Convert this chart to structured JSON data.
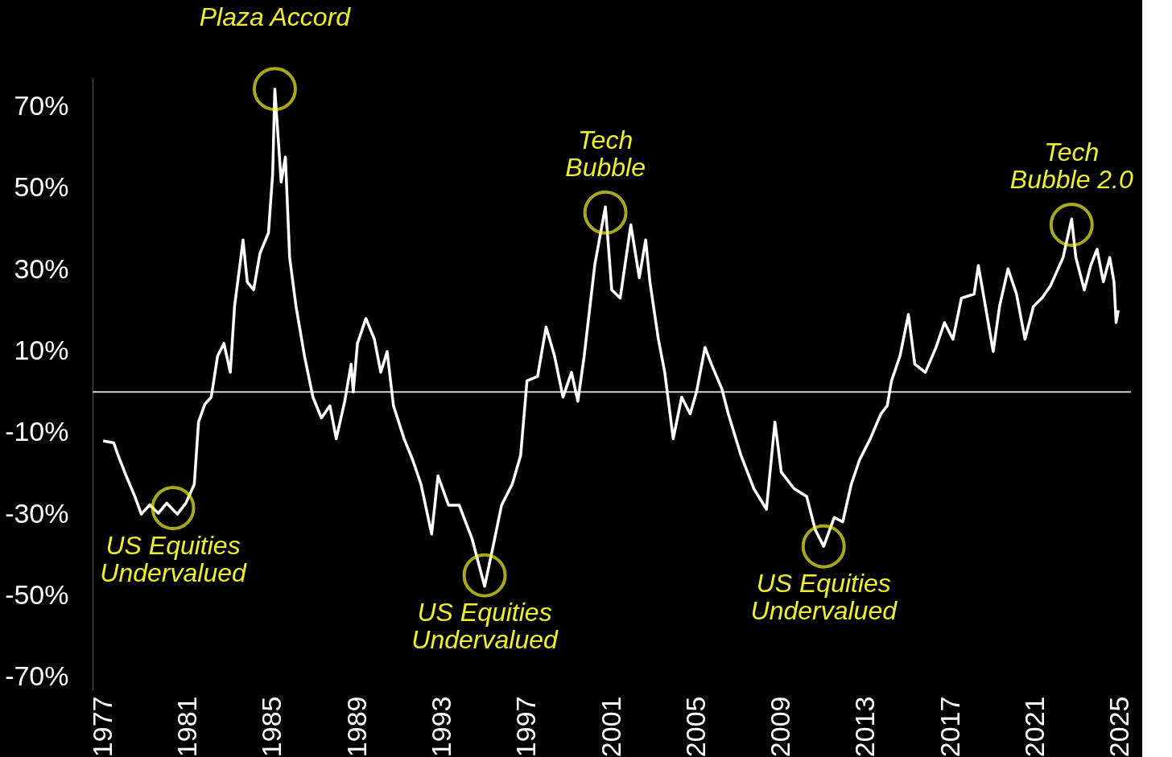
{
  "chart_data": {
    "type": "line",
    "x": [
      1977.0,
      1977.5,
      1977.7,
      1978.1,
      1978.5,
      1978.8,
      1979.2,
      1979.6,
      1980.0,
      1980.5,
      1980.9,
      1981.3,
      1981.5,
      1981.8,
      1982.1,
      1982.4,
      1982.7,
      1983.0,
      1983.2,
      1983.5,
      1983.6,
      1983.8,
      1984.1,
      1984.4,
      1984.8,
      1985.0,
      1985.1,
      1985.4,
      1985.6,
      1985.8,
      1986.1,
      1986.5,
      1986.9,
      1987.3,
      1987.7,
      1988.0,
      1988.4,
      1988.7,
      1988.8,
      1989.0,
      1989.4,
      1989.8,
      1990.1,
      1990.4,
      1990.7,
      1991.2,
      1991.6,
      1992.0,
      1992.5,
      1992.8,
      1993.3,
      1993.8,
      1994.4,
      1995.0,
      1995.4,
      1995.8,
      1996.3,
      1996.7,
      1997.0,
      1997.5,
      1997.9,
      1998.3,
      1998.7,
      1999.1,
      1999.4,
      1999.7,
      2000.2,
      2000.7,
      2001.0,
      2001.4,
      2001.9,
      2002.3,
      2002.6,
      2002.8,
      2003.2,
      2003.5,
      2003.9,
      2004.3,
      2004.7,
      2005.0,
      2005.4,
      2005.7,
      2006.2,
      2006.5,
      2007.1,
      2007.7,
      2008.3,
      2008.7,
      2009.0,
      2009.6,
      2010.2,
      2010.6,
      2011.0,
      2011.5,
      2011.9,
      2012.3,
      2012.7,
      2013.2,
      2013.7,
      2014.0,
      2014.2,
      2014.6,
      2015.0,
      2015.3,
      2015.8,
      2016.3,
      2016.7,
      2017.1,
      2017.5,
      2018.1,
      2018.3,
      2018.7,
      2019.0,
      2019.3,
      2019.7,
      2020.1,
      2020.5,
      2020.9,
      2021.3,
      2021.7,
      2022.3,
      2022.7,
      2022.9,
      2023.3,
      2023.6,
      2023.9,
      2024.2,
      2024.5,
      2024.7,
      2024.8,
      2024.9
    ],
    "series": [
      {
        "color": "#ffffff",
        "values": [
          -12,
          -12.5,
          -15.5,
          -20.8,
          -25.7,
          -30,
          -27.7,
          -29.8,
          -27.3,
          -30,
          -27.3,
          -22.7,
          -7.4,
          -3,
          -1.3,
          8.8,
          11.9,
          4.8,
          21,
          33,
          37.3,
          27,
          25,
          34,
          39,
          53.6,
          74.3,
          51.5,
          57.6,
          33,
          21,
          8.8,
          -1.3,
          -6.4,
          -3.4,
          -11.5,
          -2.3,
          6.8,
          0,
          11.9,
          18,
          12.9,
          4.8,
          9.9,
          -3.4,
          -11.5,
          -16.6,
          -22.7,
          -34.9,
          -20.6,
          -27.8,
          -27.8,
          -35.9,
          -47.7,
          -37.9,
          -27.8,
          -22.7,
          -15.6,
          2.7,
          3.8,
          15.9,
          8.8,
          -1.3,
          4.8,
          -2.3,
          8.8,
          31.2,
          45.4,
          25,
          23,
          41,
          28,
          37.3,
          27,
          12.9,
          4.8,
          -11.5,
          -1.3,
          -5.4,
          0,
          10.9,
          6.8,
          0.7,
          -5.4,
          -15.6,
          -23.7,
          -28.8,
          -7.4,
          -19.7,
          -23.7,
          -25.7,
          -33.8,
          -37.9,
          -30.8,
          -31.9,
          -22.7,
          -16.6,
          -11.5,
          -5.4,
          -3.4,
          2.7,
          8.8,
          19,
          6.8,
          4.8,
          10.9,
          17,
          12.9,
          23,
          24,
          31,
          19,
          9.9,
          21,
          30.2,
          24,
          12.9,
          21,
          23,
          26,
          33,
          42.4,
          33,
          25,
          31,
          35,
          27,
          33,
          27,
          17,
          20
        ]
      }
    ],
    "xlim": [
      1976.5,
      2025.5
    ],
    "xticks": [
      1977,
      1981,
      1985,
      1989,
      1993,
      1997,
      2001,
      2005,
      2009,
      2013,
      2017,
      2021,
      2025
    ],
    "ylim": [
      -73,
      77
    ],
    "yticks": [
      {
        "value": -70,
        "label": "-70%"
      },
      {
        "value": -50,
        "label": "-50%"
      },
      {
        "value": -30,
        "label": "-30%"
      },
      {
        "value": -10,
        "label": "-10%"
      },
      {
        "value": 10,
        "label": "10%"
      },
      {
        "value": 30,
        "label": "30%"
      },
      {
        "value": 50,
        "label": "50%"
      },
      {
        "value": 70,
        "label": "70%"
      }
    ],
    "ref_lines": [
      {
        "axis": "y",
        "value": 0,
        "color": "#cfcfcf"
      }
    ],
    "annotations": [
      {
        "text": "Plaza Accord",
        "x": 1985.1,
        "y": 74.3
      },
      {
        "text": "US Equities\nUndervalued",
        "x": 1980.3,
        "y": -28.5
      },
      {
        "text": "US Equities\nUndervalued",
        "x": 1995.0,
        "y": -45
      },
      {
        "text": "Tech\nBubble",
        "x": 2000.7,
        "y": 44
      },
      {
        "text": "US Equities\nUndervalued",
        "x": 2011.0,
        "y": -37.9
      },
      {
        "text": "Tech\nBubble 2.0",
        "x": 2022.7,
        "y": 41
      }
    ],
    "grid": false
  }
}
